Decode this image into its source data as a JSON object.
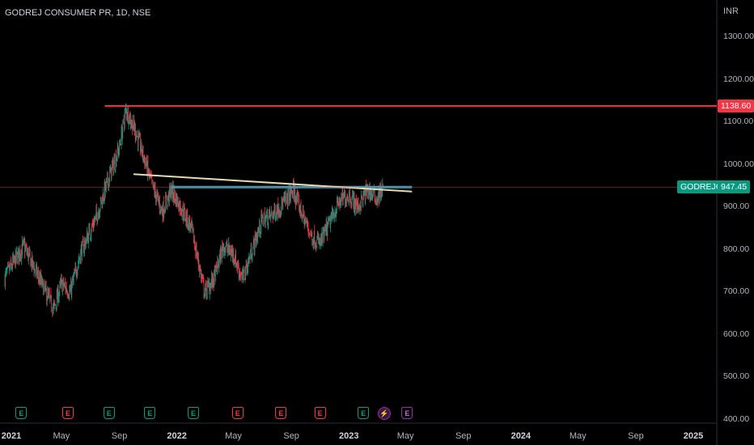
{
  "header": {
    "title": "GODREJ CONSUMER PR, 1D, NSE",
    "currency": "INR"
  },
  "chart_data": {
    "type": "candlestick",
    "symbol": "GODREJCP",
    "last_price": "947.45",
    "resistance_level": "1138.60",
    "ylim": [
      395,
      1395
    ],
    "y_ticks": [
      "1300.00",
      "1200.00",
      "1100.00",
      "1000.00",
      "900.00",
      "800.00",
      "700.00",
      "600.00",
      "500.00",
      "400.00"
    ],
    "x_ticks": [
      "2021",
      "May",
      "Sep",
      "2022",
      "May",
      "Sep",
      "2023",
      "May",
      "Sep",
      "2024",
      "May",
      "Sep",
      "2025"
    ],
    "price_path": [
      {
        "date": "2021-01-01",
        "price": 735
      },
      {
        "date": "2021-02-10",
        "price": 810
      },
      {
        "date": "2021-03-20",
        "price": 720
      },
      {
        "date": "2021-04-15",
        "price": 660
      },
      {
        "date": "2021-05-01",
        "price": 720
      },
      {
        "date": "2021-05-20",
        "price": 700
      },
      {
        "date": "2021-06-10",
        "price": 790
      },
      {
        "date": "2021-07-15",
        "price": 880
      },
      {
        "date": "2021-08-10",
        "price": 970
      },
      {
        "date": "2021-09-01",
        "price": 1040
      },
      {
        "date": "2021-09-15",
        "price": 1130
      },
      {
        "date": "2021-10-05",
        "price": 1080
      },
      {
        "date": "2021-10-25",
        "price": 1010
      },
      {
        "date": "2021-11-10",
        "price": 950
      },
      {
        "date": "2021-12-01",
        "price": 890
      },
      {
        "date": "2021-12-20",
        "price": 940
      },
      {
        "date": "2022-01-10",
        "price": 900
      },
      {
        "date": "2022-02-01",
        "price": 850
      },
      {
        "date": "2022-03-01",
        "price": 700
      },
      {
        "date": "2022-03-20",
        "price": 730
      },
      {
        "date": "2022-04-10",
        "price": 810
      },
      {
        "date": "2022-05-01",
        "price": 790
      },
      {
        "date": "2022-05-20",
        "price": 730
      },
      {
        "date": "2022-06-10",
        "price": 800
      },
      {
        "date": "2022-07-01",
        "price": 870
      },
      {
        "date": "2022-07-20",
        "price": 880
      },
      {
        "date": "2022-08-15",
        "price": 910
      },
      {
        "date": "2022-09-05",
        "price": 940
      },
      {
        "date": "2022-09-25",
        "price": 880
      },
      {
        "date": "2022-10-15",
        "price": 830
      },
      {
        "date": "2022-11-01",
        "price": 815
      },
      {
        "date": "2022-11-20",
        "price": 860
      },
      {
        "date": "2022-12-10",
        "price": 910
      },
      {
        "date": "2023-01-01",
        "price": 930
      },
      {
        "date": "2023-01-20",
        "price": 900
      },
      {
        "date": "2023-02-10",
        "price": 940
      },
      {
        "date": "2023-03-01",
        "price": 920
      },
      {
        "date": "2023-03-15",
        "price": 947
      }
    ],
    "drawings": [
      {
        "type": "horizontal_line",
        "color": "#f23645",
        "price": 1138.6,
        "from": "2021-08-01"
      },
      {
        "type": "horizontal_line",
        "color": "#26a8c4",
        "price": 947.45,
        "from": "2021-12-20",
        "to": "2023-05-15"
      },
      {
        "type": "trend_line",
        "color": "#e8d9b0",
        "from": {
          "date": "2021-10-01",
          "price": 978
        },
        "to": {
          "date": "2023-05-15",
          "price": 937
        }
      }
    ],
    "events": [
      {
        "type": "E",
        "color": "green",
        "date": "2021-02-05"
      },
      {
        "type": "E",
        "color": "red",
        "date": "2021-05-15"
      },
      {
        "type": "E",
        "color": "green",
        "date": "2021-08-10"
      },
      {
        "type": "E",
        "color": "green",
        "date": "2021-11-05"
      },
      {
        "type": "E",
        "color": "green",
        "date": "2022-02-05"
      },
      {
        "type": "E",
        "color": "red",
        "date": "2022-05-10"
      },
      {
        "type": "E",
        "color": "red",
        "date": "2022-08-10"
      },
      {
        "type": "E",
        "color": "red",
        "date": "2022-11-01"
      },
      {
        "type": "E",
        "color": "green",
        "date": "2023-02-01"
      },
      {
        "type": "flash",
        "color": "purple",
        "date": "2023-03-15"
      },
      {
        "type": "E",
        "color": "purple",
        "date": "2023-05-05"
      }
    ]
  }
}
